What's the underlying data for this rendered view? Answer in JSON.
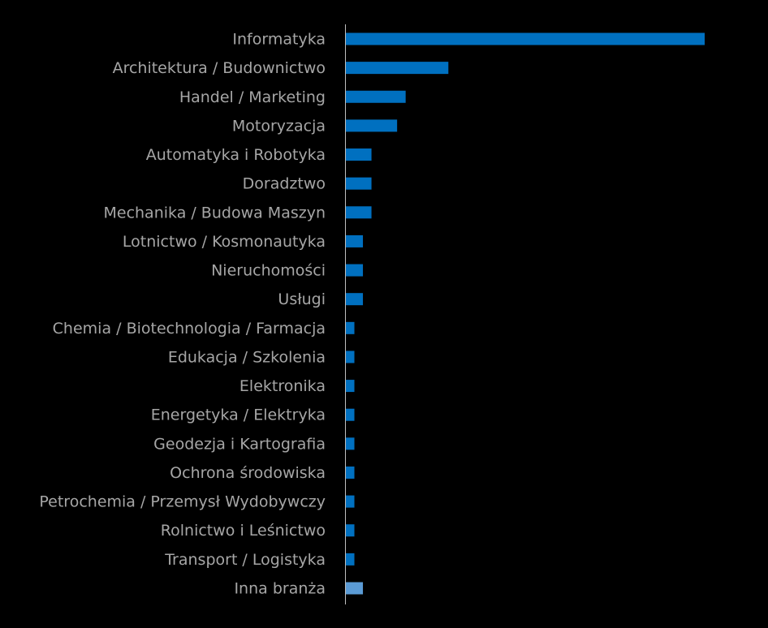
{
  "chart_data": {
    "type": "hbar",
    "categories": [
      "Informatyka",
      "Architektura / Budownictwo",
      "Handel / Marketing",
      "Motoryzacja",
      "Automatyka i Robotyka",
      "Doradztwo",
      "Mechanika / Budowa Maszyn",
      "Lotnictwo / Kosmonautyka",
      "Nieruchomości",
      "Usługi",
      "Chemia / Biotechnologia / Farmacja",
      "Edukacja / Szkolenia",
      "Elektronika",
      "Energetyka / Elektryka",
      "Geodezja i Kartografia",
      "Ochrona środowiska",
      "Petrochemia / Przemysł Wydobywczy",
      "Rolnictwo i Leśnictwo",
      "Transport / Logistyka",
      "Inna branża"
    ],
    "values": [
      42,
      12,
      7,
      6,
      3,
      3,
      3,
      2,
      2,
      2,
      1,
      1,
      1,
      1,
      1,
      1,
      1,
      1,
      1,
      2
    ],
    "colors": [
      "#0070c0",
      "#0070c0",
      "#0070c0",
      "#0070c0",
      "#0070c0",
      "#0070c0",
      "#0070c0",
      "#0070c0",
      "#0070c0",
      "#0070c0",
      "#0070c0",
      "#0070c0",
      "#0070c0",
      "#0070c0",
      "#0070c0",
      "#0070c0",
      "#0070c0",
      "#0070c0",
      "#0070c0",
      "#5b9bd5"
    ]
  }
}
